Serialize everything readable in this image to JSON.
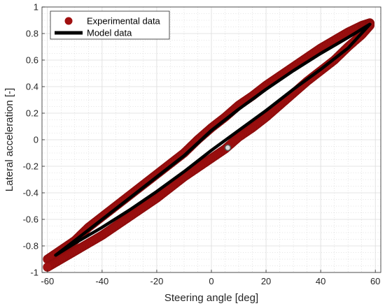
{
  "chart_data": {
    "type": "scatter",
    "title": "",
    "xlabel": "Steering angle [deg]",
    "ylabel": "Lateral acceleration [-]",
    "xlim": [
      -62,
      62
    ],
    "ylim": [
      -1,
      1
    ],
    "x_ticks": [
      "-60",
      "-40",
      "-20",
      "0",
      "20",
      "40",
      "60"
    ],
    "y_ticks": [
      "-1",
      "-0.8",
      "-0.6",
      "-0.4",
      "-0.2",
      "0",
      "0.2",
      "0.4",
      "0.6",
      "0.8",
      "1"
    ],
    "grid": true,
    "minor_grid": true,
    "legend_position": "top-left",
    "series": [
      {
        "name": "Experimental data",
        "kind": "markers",
        "color": "#a01010",
        "upper_branch": [
          [
            -60,
            -0.9
          ],
          [
            -55,
            -0.83
          ],
          [
            -50,
            -0.76
          ],
          [
            -45,
            -0.66
          ],
          [
            -40,
            -0.58
          ],
          [
            -35,
            -0.5
          ],
          [
            -30,
            -0.42
          ],
          [
            -25,
            -0.34
          ],
          [
            -20,
            -0.26
          ],
          [
            -15,
            -0.18
          ],
          [
            -10,
            -0.1
          ],
          [
            -5,
            0.0
          ],
          [
            0,
            0.09
          ],
          [
            5,
            0.17
          ],
          [
            10,
            0.26
          ],
          [
            15,
            0.33
          ],
          [
            20,
            0.41
          ],
          [
            25,
            0.48
          ],
          [
            30,
            0.55
          ],
          [
            35,
            0.62
          ],
          [
            40,
            0.69
          ],
          [
            45,
            0.75
          ],
          [
            50,
            0.81
          ],
          [
            55,
            0.86
          ],
          [
            58,
            0.88
          ]
        ],
        "lower_branch": [
          [
            58,
            0.86
          ],
          [
            55,
            0.79
          ],
          [
            50,
            0.7
          ],
          [
            45,
            0.6
          ],
          [
            40,
            0.52
          ],
          [
            35,
            0.44
          ],
          [
            30,
            0.35
          ],
          [
            25,
            0.26
          ],
          [
            20,
            0.17
          ],
          [
            15,
            0.09
          ],
          [
            10,
            0.02
          ],
          [
            5,
            -0.07
          ],
          [
            0,
            -0.14
          ],
          [
            -5,
            -0.21
          ],
          [
            -10,
            -0.28
          ],
          [
            -15,
            -0.36
          ],
          [
            -20,
            -0.44
          ],
          [
            -25,
            -0.51
          ],
          [
            -30,
            -0.58
          ],
          [
            -35,
            -0.65
          ],
          [
            -40,
            -0.72
          ],
          [
            -45,
            -0.78
          ],
          [
            -50,
            -0.84
          ],
          [
            -55,
            -0.9
          ],
          [
            -60,
            -0.96
          ]
        ]
      },
      {
        "name": "Model data",
        "kind": "line",
        "color": "#000000",
        "upper_branch": [
          [
            -57,
            -0.87
          ],
          [
            -50,
            -0.76
          ],
          [
            -40,
            -0.6
          ],
          [
            -30,
            -0.44
          ],
          [
            -20,
            -0.28
          ],
          [
            -10,
            -0.12
          ],
          [
            0,
            0.07
          ],
          [
            10,
            0.23
          ],
          [
            20,
            0.38
          ],
          [
            30,
            0.52
          ],
          [
            40,
            0.65
          ],
          [
            50,
            0.77
          ],
          [
            58,
            0.87
          ]
        ],
        "lower_branch": [
          [
            58,
            0.87
          ],
          [
            50,
            0.69
          ],
          [
            40,
            0.53
          ],
          [
            30,
            0.38
          ],
          [
            20,
            0.22
          ],
          [
            10,
            0.07
          ],
          [
            0,
            -0.08
          ],
          [
            -10,
            -0.24
          ],
          [
            -20,
            -0.39
          ],
          [
            -30,
            -0.53
          ],
          [
            -40,
            -0.66
          ],
          [
            -50,
            -0.78
          ],
          [
            -57,
            -0.87
          ]
        ]
      }
    ],
    "highlight_point": {
      "x": 6,
      "y": -0.06,
      "color": "#d9d9d9"
    }
  }
}
